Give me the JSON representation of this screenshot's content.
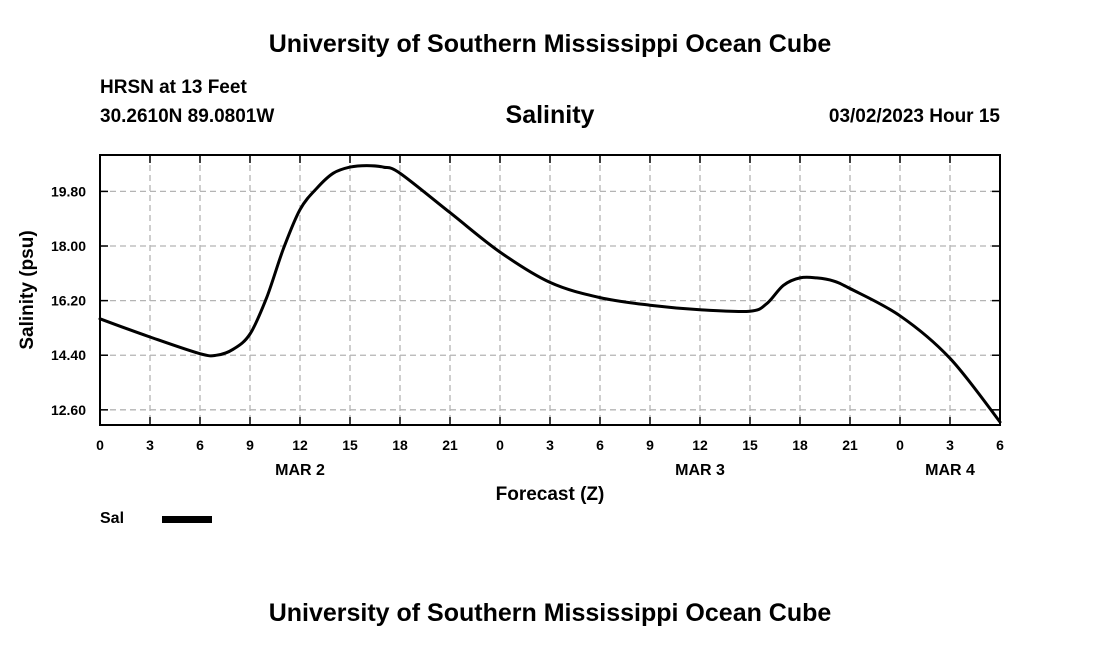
{
  "header": {
    "title": "University of Southern Mississippi Ocean Cube",
    "station": "HRSN at 13 Feet",
    "coords": "30.2610N  89.0801W",
    "datetime": "03/02/2023 Hour 15"
  },
  "footer": {
    "title": "University of Southern Mississippi Ocean Cube"
  },
  "chart_data": {
    "type": "line",
    "title": "Salinity",
    "xlabel": "Forecast (Z)",
    "ylabel": "Salinity (psu)",
    "xlim": [
      0,
      54
    ],
    "ylim": [
      12.1,
      21.0
    ],
    "grid": true,
    "x_ticks": [
      {
        "h": 0,
        "label": "0"
      },
      {
        "h": 3,
        "label": "3"
      },
      {
        "h": 6,
        "label": "6"
      },
      {
        "h": 9,
        "label": "9"
      },
      {
        "h": 12,
        "label": "12"
      },
      {
        "h": 15,
        "label": "15"
      },
      {
        "h": 18,
        "label": "18"
      },
      {
        "h": 21,
        "label": "21"
      },
      {
        "h": 24,
        "label": "0"
      },
      {
        "h": 27,
        "label": "3"
      },
      {
        "h": 30,
        "label": "6"
      },
      {
        "h": 33,
        "label": "9"
      },
      {
        "h": 36,
        "label": "12"
      },
      {
        "h": 39,
        "label": "15"
      },
      {
        "h": 42,
        "label": "18"
      },
      {
        "h": 45,
        "label": "21"
      },
      {
        "h": 48,
        "label": "0"
      },
      {
        "h": 51,
        "label": "3"
      },
      {
        "h": 54,
        "label": "6"
      }
    ],
    "date_labels": [
      {
        "h": 12,
        "label": "MAR 2"
      },
      {
        "h": 36,
        "label": "MAR 3"
      },
      {
        "h": 51,
        "label": "MAR 4"
      }
    ],
    "y_ticks": [
      {
        "v": 12.6,
        "label": "12.60"
      },
      {
        "v": 14.4,
        "label": "14.40"
      },
      {
        "v": 16.2,
        "label": "16.20"
      },
      {
        "v": 18.0,
        "label": "18.00"
      },
      {
        "v": 19.8,
        "label": "19.80"
      }
    ],
    "series": [
      {
        "name": "Sal",
        "x": [
          0,
          3,
          6,
          7,
          8,
          9,
          10,
          11,
          12,
          13,
          14,
          15,
          16,
          17,
          18,
          21,
          24,
          27,
          30,
          33,
          36,
          39,
          40,
          41,
          42,
          43,
          44,
          45,
          48,
          51,
          54
        ],
        "values": [
          15.6,
          15.0,
          14.45,
          14.4,
          14.6,
          15.1,
          16.3,
          17.9,
          19.2,
          19.9,
          20.4,
          20.6,
          20.65,
          20.6,
          20.4,
          19.1,
          17.8,
          16.8,
          16.3,
          16.05,
          15.9,
          15.85,
          16.1,
          16.7,
          16.95,
          16.95,
          16.85,
          16.6,
          15.7,
          14.3,
          12.2
        ]
      }
    ],
    "legend": "bottom-left"
  }
}
